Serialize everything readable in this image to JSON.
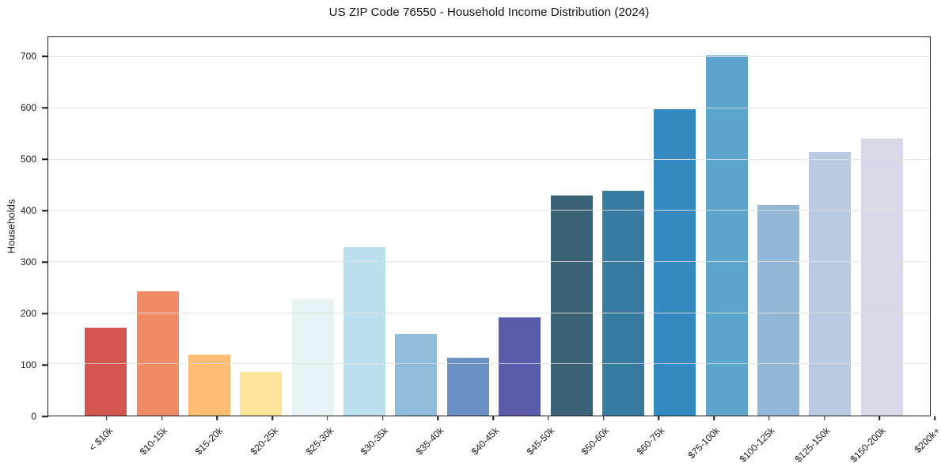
{
  "chart_data": {
    "type": "bar",
    "title": "US ZIP Code 76550 - Household Income Distribution (2024)",
    "xlabel": "",
    "ylabel": "Households",
    "categories": [
      "< $10k",
      "$10-15k",
      "$15-20k",
      "$20-25k",
      "$25-30k",
      "$30-35k",
      "$35-40k",
      "$40-45k",
      "$45-50k",
      "$50-60k",
      "$60-75k",
      "$75-100k",
      "$100-125k",
      "$125-150k",
      "$150-200k",
      "$200k+"
    ],
    "values": [
      172,
      242,
      119,
      85,
      228,
      330,
      160,
      113,
      192,
      430,
      439,
      598,
      704,
      411,
      515,
      541
    ],
    "bar_colors": [
      "#d4564e",
      "#f18a66",
      "#fbbc74",
      "#fde499",
      "#e7f2f5",
      "#bcdfed",
      "#90bcdb",
      "#6b92c4",
      "#5a5caa",
      "#3a6176",
      "#377ba0",
      "#3389c0",
      "#5da5cb",
      "#92b8d8",
      "#bac9e2",
      "#d7d9e8"
    ],
    "y_ticks": [
      0,
      100,
      200,
      300,
      400,
      500,
      600,
      700
    ],
    "ylim": [
      0,
      739
    ],
    "grid": "horizontal",
    "grid_on_top_of_bars": true,
    "background_color": "#ffffff",
    "spine_color": "#1c1c1c",
    "grid_color": "#e1e1e1",
    "legend": "none"
  }
}
